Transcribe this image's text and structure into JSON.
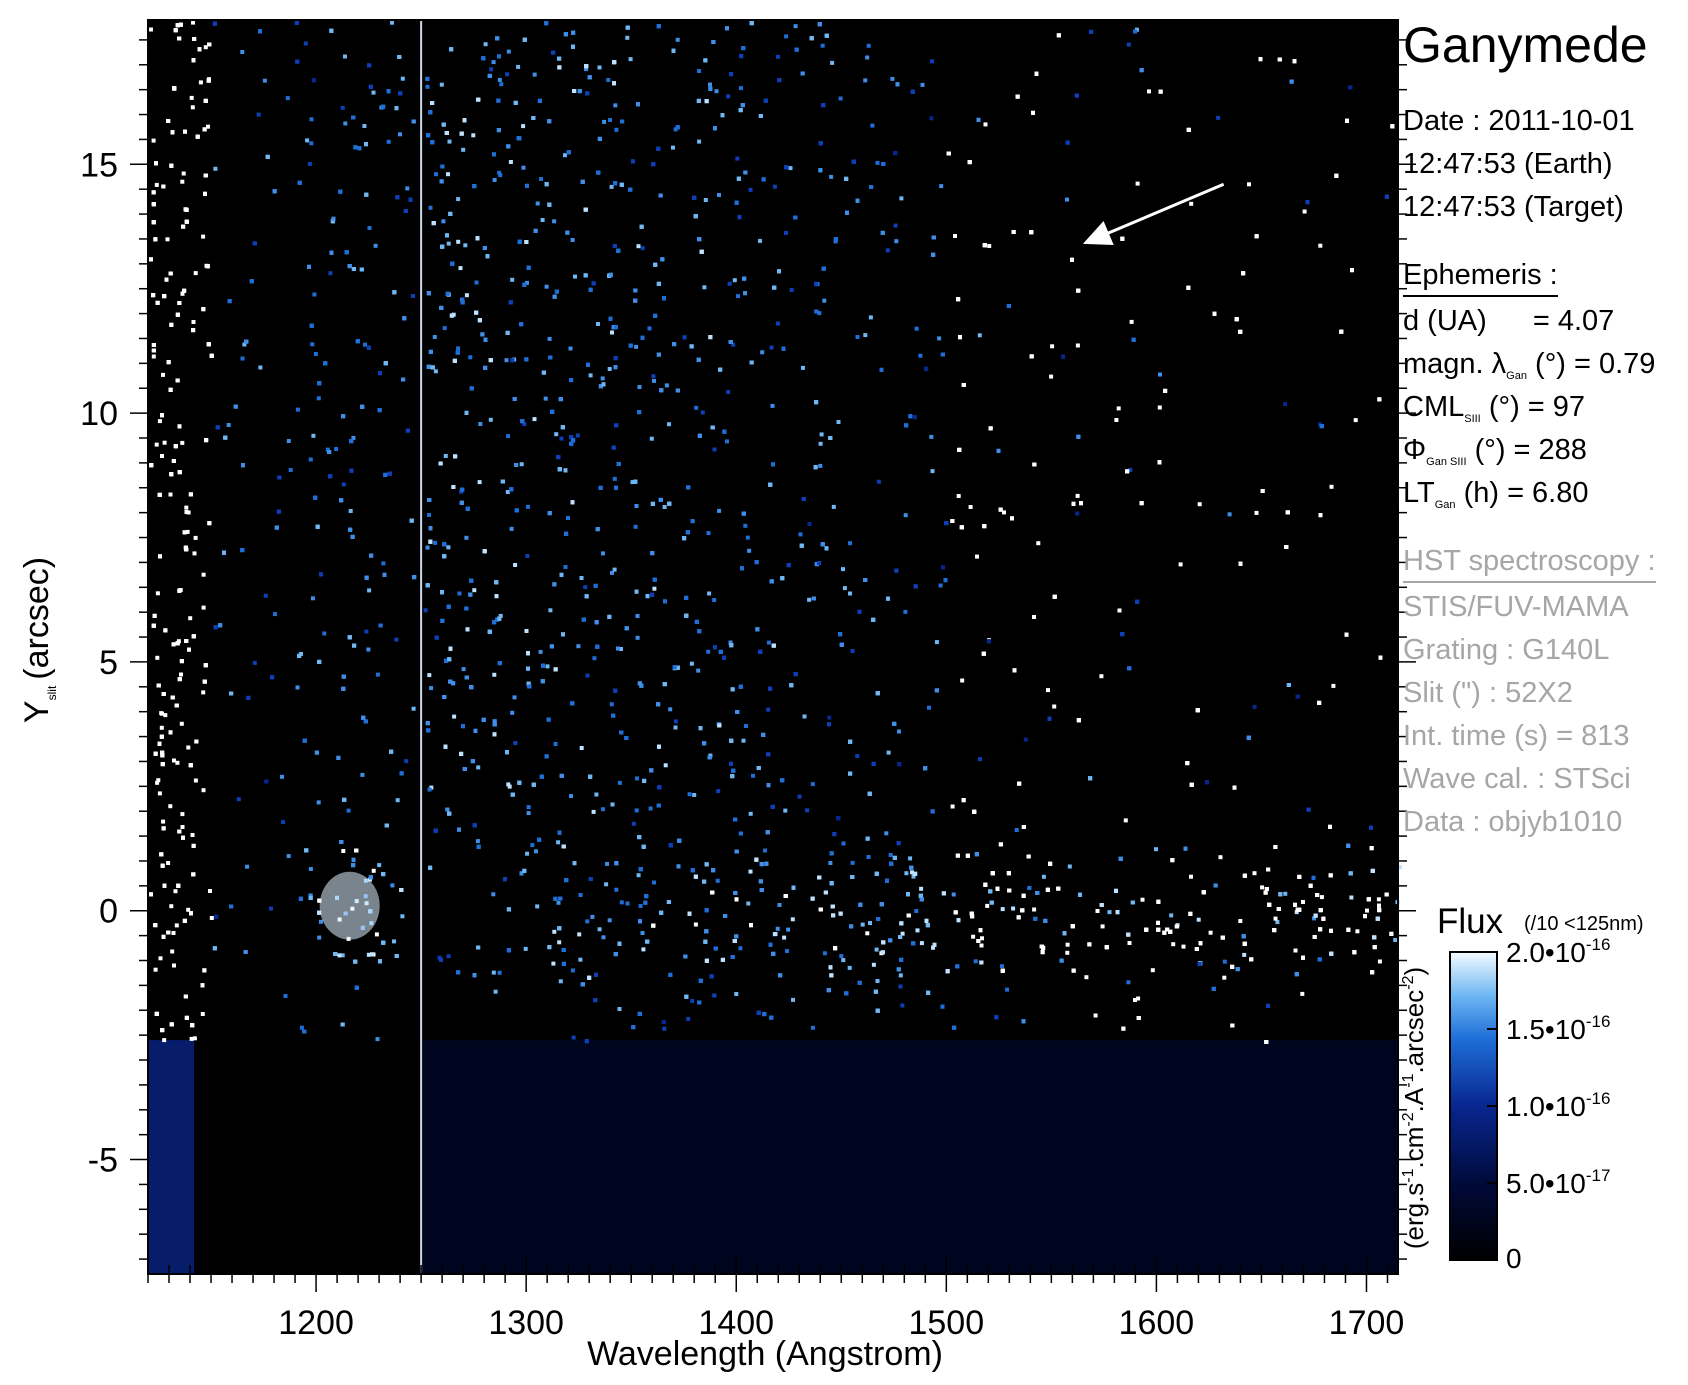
{
  "chart_data": {
    "type": "heatmap",
    "title": "Ganymede",
    "xlabel": "Wavelength (Angstrom)",
    "ylabel_main": "Y",
    "ylabel_sub": "slit",
    "ylabel_unit": "(arcsec)",
    "xlim": [
      1120,
      1715
    ],
    "ylim": [
      -7.3,
      17.9
    ],
    "x_ticks": [
      1200,
      1300,
      1400,
      1500,
      1600,
      1700
    ],
    "y_ticks": [
      -5,
      0,
      5,
      10,
      15
    ],
    "colorbar": {
      "label": "Flux",
      "note": "(/10 <125nm)",
      "unit": "(erg.s-1.cm-2.A-1.arcsec-2)",
      "range": [
        0,
        2e-16
      ],
      "tick_values": [
        0,
        5e-17,
        1e-16,
        1.5e-16,
        2e-16
      ],
      "tick_labels": [
        "0",
        "5.0•10",
        "1.0•10",
        "1.5•10",
        "2.0•10"
      ],
      "tick_exponents": [
        "",
        "-17",
        "-16",
        "-16",
        "-16"
      ],
      "colors": [
        "#000000",
        "#000a3a",
        "#08268f",
        "#1f6fd8",
        "#6fb8f3",
        "#f4fbff"
      ]
    },
    "features": [
      {
        "name": "Lyman-alpha emission",
        "x": 1216,
        "y": 0
      },
      {
        "name": "Ganymede disk spectrum",
        "x": [
          1260,
          1715
        ],
        "y": 0
      },
      {
        "name": "arrow",
        "from": [
          1632,
          14.6
        ],
        "to": [
          1565,
          13.4
        ]
      }
    ]
  },
  "info": {
    "date": "Date : 2011-10-01",
    "time_earth": "12:47:53 (Earth)",
    "time_target": "12:47:53 (Target)",
    "ephemeris_header": "Ephemeris :",
    "d_label": "d (UA)",
    "d_value": "= 4.07",
    "magn_label": "magn. λ",
    "magn_sub": "Gan",
    "magn_value": "(°) = 0.79",
    "cml_label": "CML",
    "cml_sub": "SIII",
    "cml_value": "(°) = 97",
    "phi_label": "Φ",
    "phi_sub": "Gan SIII",
    "phi_value": "(°) = 288",
    "lt_label": "LT",
    "lt_sub": "Gan",
    "lt_value": "(h) = 6.80",
    "hst_header": "HST spectroscopy :",
    "instrument": "STIS/FUV-MAMA",
    "grating": "Grating : G140L",
    "slit": "Slit (\") : 52X2",
    "int_time": "Int. time (s) = 813",
    "wave_cal": "Wave cal. : STSci",
    "data_id": "Data : objyb1010"
  }
}
